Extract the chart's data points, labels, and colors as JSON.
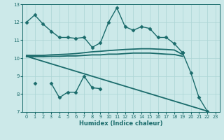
{
  "xlabel": "Humidex (Indice chaleur)",
  "ylabel": "",
  "xlim": [
    -0.5,
    23.5
  ],
  "ylim": [
    7,
    13
  ],
  "yticks": [
    7,
    8,
    9,
    10,
    11,
    12,
    13
  ],
  "xticks": [
    0,
    1,
    2,
    3,
    4,
    5,
    6,
    7,
    8,
    9,
    10,
    11,
    12,
    13,
    14,
    15,
    16,
    17,
    18,
    19,
    20,
    21,
    22,
    23
  ],
  "bg_color": "#cce9e9",
  "line_color": "#1a6b6b",
  "grid_color": "#aad4d4",
  "lines": [
    {
      "x": [
        0,
        1,
        2,
        3,
        4,
        5,
        6,
        7,
        8,
        9,
        10,
        11,
        12,
        13,
        14,
        15,
        16,
        17,
        18,
        19
      ],
      "y": [
        12.0,
        12.4,
        11.9,
        11.5,
        11.15,
        11.15,
        11.1,
        11.15,
        10.6,
        10.85,
        12.0,
        12.8,
        11.75,
        11.55,
        11.75,
        11.65,
        11.15,
        11.15,
        10.8,
        10.3
      ],
      "marker": "D",
      "lw": 1.0,
      "ms": 2.5
    },
    {
      "x": [
        0,
        1,
        2,
        3,
        4,
        5,
        6,
        7,
        8,
        9,
        10,
        11,
        12,
        13,
        14,
        15,
        16,
        17,
        18,
        19
      ],
      "y": [
        10.15,
        10.15,
        10.15,
        10.18,
        10.2,
        10.22,
        10.25,
        10.3,
        10.35,
        10.38,
        10.42,
        10.45,
        10.48,
        10.5,
        10.52,
        10.52,
        10.5,
        10.48,
        10.45,
        10.2
      ],
      "marker": null,
      "lw": 1.3,
      "ms": 0
    },
    {
      "x": [
        0,
        1,
        2,
        3,
        4,
        5,
        6,
        7,
        8,
        9,
        10,
        11,
        12,
        13,
        14,
        15,
        16,
        17,
        18,
        19
      ],
      "y": [
        10.08,
        10.08,
        10.08,
        10.1,
        10.1,
        10.12,
        10.12,
        10.15,
        10.18,
        10.18,
        10.22,
        10.22,
        10.25,
        10.28,
        10.28,
        10.28,
        10.25,
        10.22,
        10.2,
        10.1
      ],
      "marker": null,
      "lw": 1.3,
      "ms": 0
    },
    {
      "x": [
        1,
        2,
        3,
        4,
        5,
        6,
        7,
        8,
        9
      ],
      "y": [
        8.6,
        null,
        8.6,
        7.8,
        8.1,
        8.1,
        9.0,
        8.35,
        8.3
      ],
      "marker": "D",
      "lw": 1.0,
      "ms": 2.5
    },
    {
      "x": [
        0,
        22
      ],
      "y": [
        10.1,
        7.05
      ],
      "marker": null,
      "lw": 1.3,
      "ms": 0
    },
    {
      "x": [
        19,
        20,
        21,
        22
      ],
      "y": [
        10.3,
        9.2,
        7.8,
        7.05
      ],
      "marker": "D",
      "lw": 1.0,
      "ms": 2.5
    }
  ]
}
